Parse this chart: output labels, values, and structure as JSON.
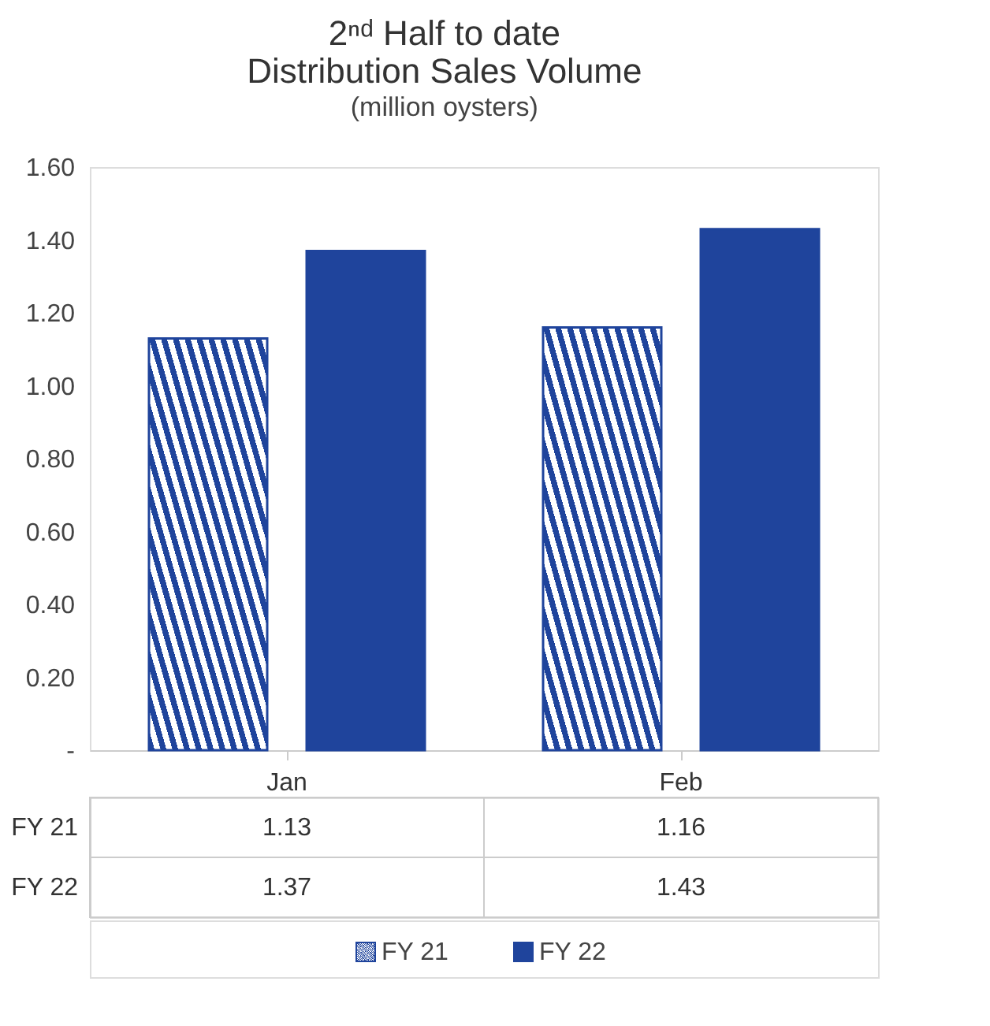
{
  "chart_data": {
    "type": "bar",
    "title": [
      "2ⁿᵈ Half to date",
      "Distribution Sales Volume"
    ],
    "subtitle": "(million oysters)",
    "categories": [
      "Jan",
      "Feb"
    ],
    "series": [
      {
        "name": "FY 21",
        "color": "#1f449c",
        "values": [
          1.13,
          1.16
        ]
      },
      {
        "name": "FY 22",
        "color": "#1f449c",
        "values": [
          1.37,
          1.43
        ]
      }
    ],
    "ylim": [
      0,
      1.6
    ],
    "yticks": [
      {
        "value": 0,
        "label": "-"
      },
      {
        "value": 0.2,
        "label": "0.20"
      },
      {
        "value": 0.4,
        "label": "0.40"
      },
      {
        "value": 0.6,
        "label": "0.60"
      },
      {
        "value": 0.8,
        "label": "0.80"
      },
      {
        "value": 1.0,
        "label": "1.00"
      },
      {
        "value": 1.2,
        "label": "1.20"
      },
      {
        "value": 1.4,
        "label": "1.40"
      },
      {
        "value": 1.6,
        "label": "1.60"
      }
    ],
    "data_labels": true,
    "legend": "bottom"
  }
}
